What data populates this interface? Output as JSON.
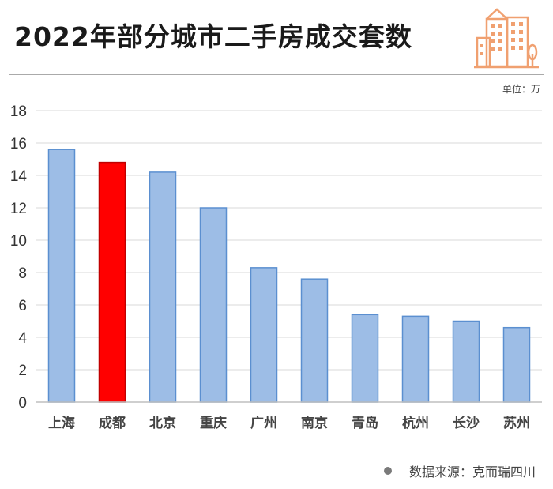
{
  "header": {
    "title": "2022年部分城市二手房成交套数",
    "unit": "单位：万"
  },
  "footer": {
    "source": "数据来源：克而瑞四川"
  },
  "colors": {
    "bar": "#9dbde6",
    "bar_stroke": "#5b8fd0",
    "highlight": "#ff0000",
    "grid": "#d9d9d9",
    "logo": "#f0a070"
  },
  "chart_data": {
    "type": "bar",
    "categories": [
      "上海",
      "成都",
      "北京",
      "重庆",
      "广州",
      "南京",
      "青岛",
      "杭州",
      "长沙",
      "苏州"
    ],
    "values": [
      15.6,
      14.8,
      14.2,
      12.0,
      8.3,
      7.6,
      5.4,
      5.3,
      5.0,
      4.6
    ],
    "highlight_category": "成都",
    "ylim": [
      0,
      18
    ],
    "yticks": [
      0,
      2,
      4,
      6,
      8,
      10,
      12,
      14,
      16,
      18
    ],
    "grid": true,
    "xlabel": "",
    "ylabel": ""
  }
}
